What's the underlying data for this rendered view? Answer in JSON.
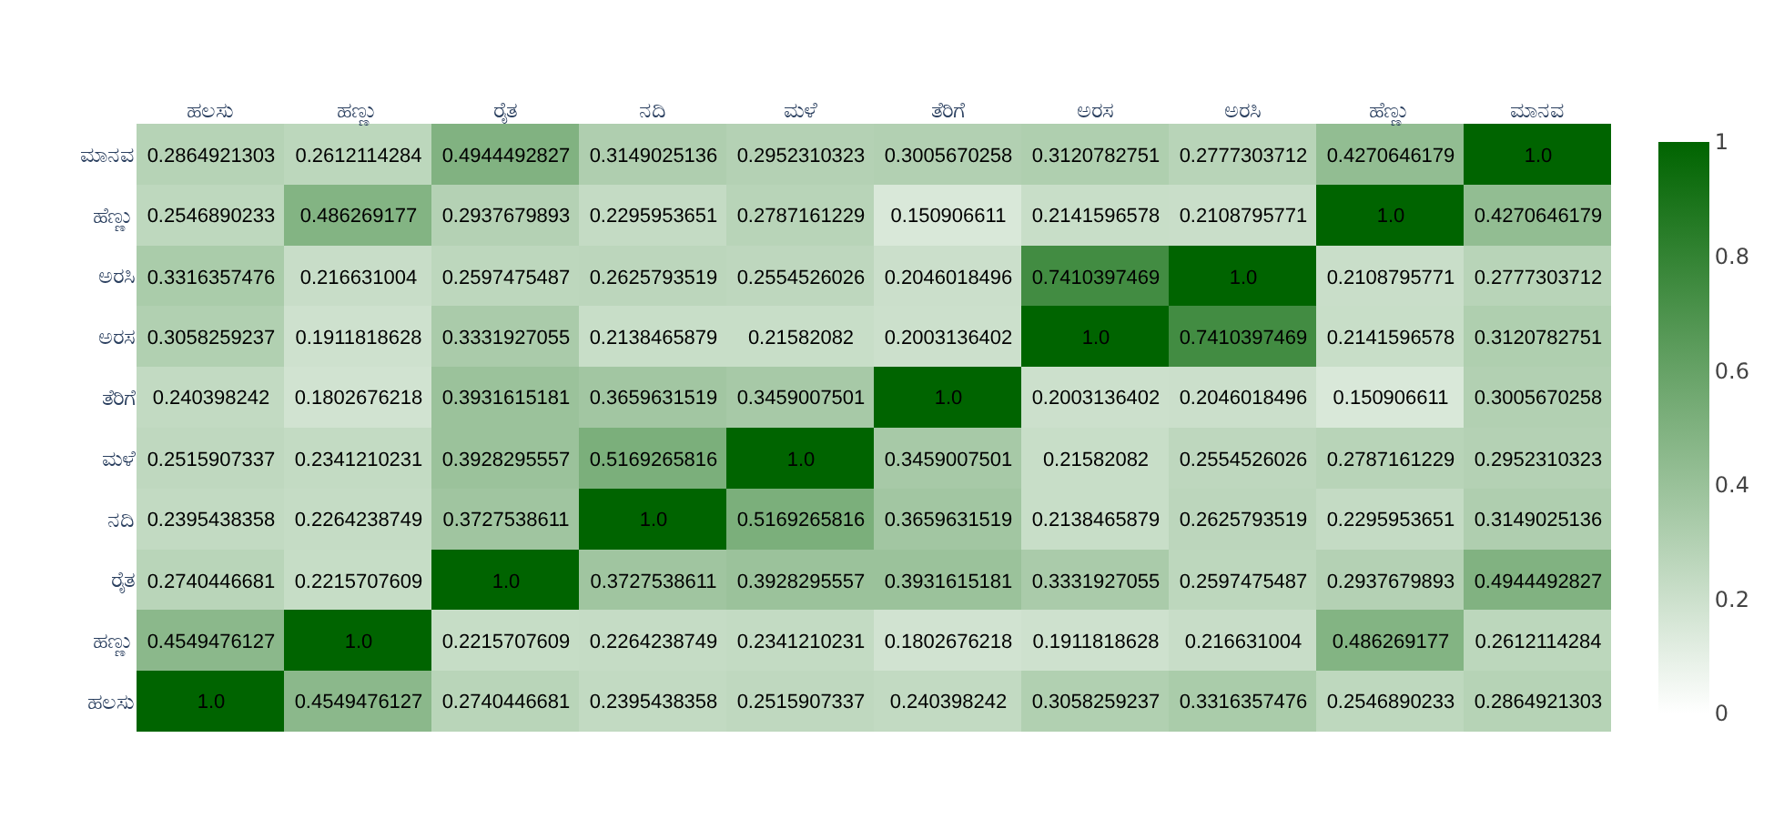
{
  "chart_data": {
    "type": "heatmap",
    "categories": [
      "ಹಲಸು",
      "ಹಣ್ಣು",
      "ರೈತ",
      "ನದಿ",
      "ಮಳೆ",
      "ತೆರಿಗೆ",
      "ಅರಸ",
      "ಅರಸಿ",
      "ಹೆಣ್ಣು",
      "ಮಾನವ"
    ],
    "y_categories": [
      "ಮಾನವ",
      "ಹೆಣ್ಣು",
      "ಅರಸಿ",
      "ಅರಸ",
      "ತೆರಿಗೆ",
      "ಮಳೆ",
      "ನದಿ",
      "ರೈತ",
      "ಹಣ್ಣು",
      "ಹಲಸು"
    ],
    "cells": [
      [
        0.2864921303,
        0.2612114284,
        0.4944492827,
        0.3149025136,
        0.2952310323,
        0.3005670258,
        0.3120782751,
        0.2777303712,
        0.4270646179,
        1.0
      ],
      [
        0.2546890233,
        0.486269177,
        0.2937679893,
        0.2295953651,
        0.2787161229,
        0.150906611,
        0.2141596578,
        0.2108795771,
        1.0,
        0.4270646179
      ],
      [
        0.3316357476,
        0.216631004,
        0.2597475487,
        0.2625793519,
        0.2554526026,
        0.2046018496,
        0.7410397469,
        1.0,
        0.2108795771,
        0.2777303712
      ],
      [
        0.3058259237,
        0.1911818628,
        0.3331927055,
        0.2138465879,
        0.21582082,
        0.2003136402,
        1.0,
        0.7410397469,
        0.2141596578,
        0.3120782751
      ],
      [
        0.240398242,
        0.1802676218,
        0.3931615181,
        0.3659631519,
        0.3459007501,
        1.0,
        0.2003136402,
        0.2046018496,
        0.150906611,
        0.3005670258
      ],
      [
        0.2515907337,
        0.2341210231,
        0.3928295557,
        0.5169265816,
        1.0,
        0.3459007501,
        0.21582082,
        0.2554526026,
        0.2787161229,
        0.2952310323
      ],
      [
        0.2395438358,
        0.2264238749,
        0.3727538611,
        1.0,
        0.5169265816,
        0.3659631519,
        0.2138465879,
        0.2625793519,
        0.2295953651,
        0.3149025136
      ],
      [
        0.2740446681,
        0.2215707609,
        1.0,
        0.3727538611,
        0.3928295557,
        0.3931615181,
        0.3331927055,
        0.2597475487,
        0.2937679893,
        0.4944492827
      ],
      [
        0.4549476127,
        1.0,
        0.2215707609,
        0.2264238749,
        0.2341210231,
        0.1802676218,
        0.1911818628,
        0.216631004,
        0.486269177,
        0.2612114284
      ],
      [
        1.0,
        0.4549476127,
        0.2740446681,
        0.2395438358,
        0.2515907337,
        0.240398242,
        0.3058259237,
        0.3316357476,
        0.2546890233,
        0.2864921303
      ]
    ],
    "cell_labels": [
      [
        "0.2864921303",
        "0.2612114284",
        "0.4944492827",
        "0.3149025136",
        "0.2952310323",
        "0.3005670258",
        "0.3120782751",
        "0.2777303712",
        "0.4270646179",
        "1.0"
      ],
      [
        "0.2546890233",
        "0.486269177",
        "0.2937679893",
        "0.2295953651",
        "0.2787161229",
        "0.150906611",
        "0.2141596578",
        "0.2108795771",
        "1.0",
        "0.4270646179"
      ],
      [
        "0.3316357476",
        "0.216631004",
        "0.2597475487",
        "0.2625793519",
        "0.2554526026",
        "0.2046018496",
        "0.7410397469",
        "1.0",
        "0.2108795771",
        "0.2777303712"
      ],
      [
        "0.3058259237",
        "0.1911818628",
        "0.3331927055",
        "0.2138465879",
        "0.21582082",
        "0.2003136402",
        "1.0",
        "0.7410397469",
        "0.2141596578",
        "0.3120782751"
      ],
      [
        "0.240398242",
        "0.1802676218",
        "0.3931615181",
        "0.3659631519",
        "0.3459007501",
        "1.0",
        "0.2003136402",
        "0.2046018496",
        "0.150906611",
        "0.3005670258"
      ],
      [
        "0.2515907337",
        "0.2341210231",
        "0.3928295557",
        "0.5169265816",
        "1.0",
        "0.3459007501",
        "0.21582082",
        "0.2554526026",
        "0.2787161229",
        "0.2952310323"
      ],
      [
        "0.2395438358",
        "0.2264238749",
        "0.3727538611",
        "1.0",
        "0.5169265816",
        "0.3659631519",
        "0.2138465879",
        "0.2625793519",
        "0.2295953651",
        "0.3149025136"
      ],
      [
        "0.2740446681",
        "0.2215707609",
        "1.0",
        "0.3727538611",
        "0.3928295557",
        "0.3931615181",
        "0.3331927055",
        "0.2597475487",
        "0.2937679893",
        "0.4944492827"
      ],
      [
        "0.4549476127",
        "1.0",
        "0.2215707609",
        "0.2264238749",
        "0.2341210231",
        "0.1802676218",
        "0.1911818628",
        "0.216631004",
        "0.486269177",
        "0.2612114284"
      ],
      [
        "1.0",
        "0.4549476127",
        "0.2740446681",
        "0.2395438358",
        "0.2515907337",
        "0.240398242",
        "0.3058259237",
        "0.3316357476",
        "0.2546890233",
        "0.2864921303"
      ]
    ],
    "clim": [
      0,
      1
    ],
    "cticks": [
      0,
      0.2,
      0.4,
      0.6,
      0.8,
      1
    ]
  }
}
